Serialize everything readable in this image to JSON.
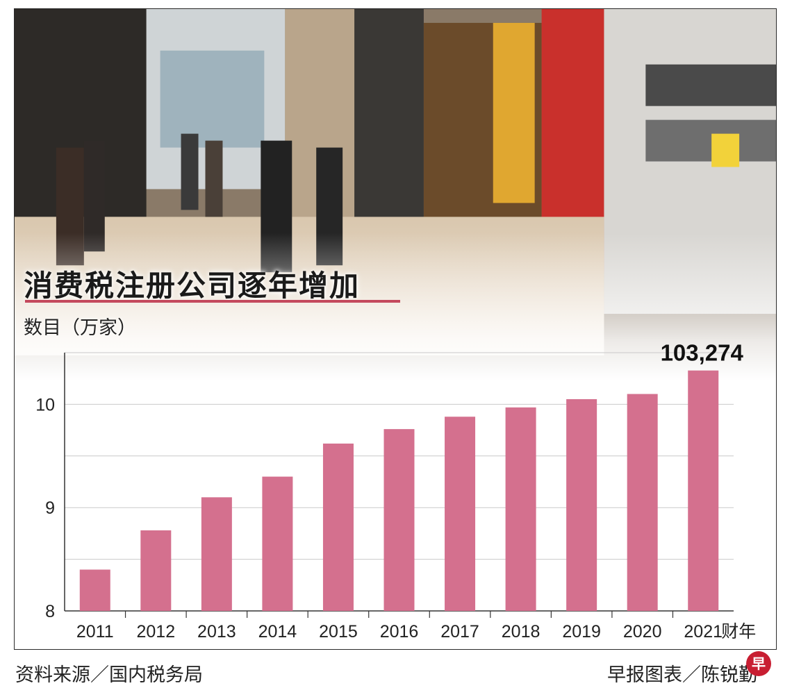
{
  "chart_data": {
    "type": "bar",
    "title": "消费税注册公司逐年增加",
    "ylabel": "数目（万家）",
    "xlabel_suffix": "财年",
    "categories": [
      "2011",
      "2012",
      "2013",
      "2014",
      "2015",
      "2016",
      "2017",
      "2018",
      "2019",
      "2020",
      "2021"
    ],
    "values": [
      8.4,
      8.78,
      9.1,
      9.3,
      9.62,
      9.76,
      9.88,
      9.97,
      10.05,
      10.1,
      10.3274
    ],
    "highlight_label": "103,274",
    "ylim": [
      8,
      10.5
    ],
    "yticks": [
      8,
      9,
      10
    ],
    "grid": true,
    "bar_color": "#d4708e"
  },
  "source": "资料来源／国内税务局",
  "credit": "早报图表／陈锐勤",
  "badge_char": "早"
}
